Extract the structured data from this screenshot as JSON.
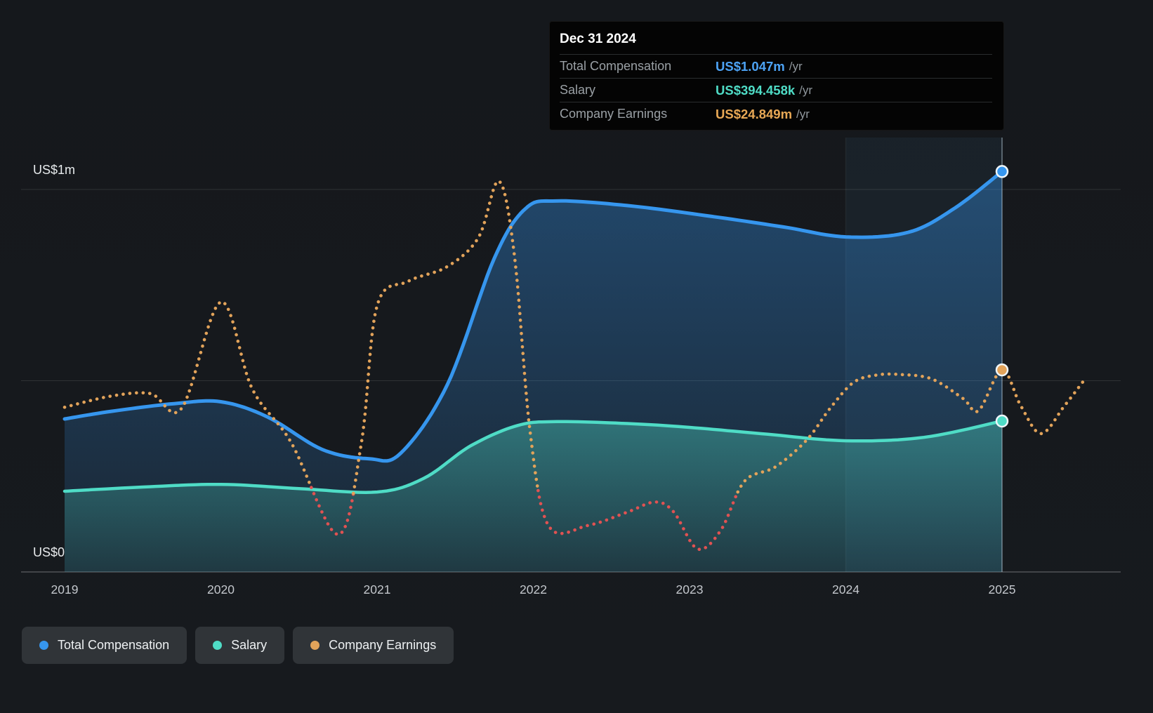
{
  "tooltip": {
    "date": "Dec 31 2024",
    "rows": [
      {
        "label": "Total Compensation",
        "value": "US$1.047m",
        "suffix": "/yr",
        "color": "#4da3f5"
      },
      {
        "label": "Salary",
        "value": "US$394.458k",
        "suffix": "/yr",
        "color": "#4fdcc6"
      },
      {
        "label": "Company Earnings",
        "value": "US$24.849m",
        "suffix": "/yr",
        "color": "#e8a855"
      }
    ]
  },
  "axes": {
    "y_labels": [
      {
        "text": "US$1m",
        "value_musd": 1
      },
      {
        "text": "US$0",
        "value_musd": 0
      }
    ],
    "x_ticks": [
      {
        "label": "2019",
        "year": 2019
      },
      {
        "label": "2020",
        "year": 2020
      },
      {
        "label": "2021",
        "year": 2021
      },
      {
        "label": "2022",
        "year": 2022
      },
      {
        "label": "2023",
        "year": 2023
      },
      {
        "label": "2024",
        "year": 2024
      },
      {
        "label": "2025",
        "year": 2025
      }
    ]
  },
  "legend": [
    {
      "label": "Total Compensation",
      "color": "#3696ee"
    },
    {
      "label": "Salary",
      "color": "#4fdcc6"
    },
    {
      "label": "Company Earnings",
      "color": "#e2a35a"
    }
  ],
  "chart_data": {
    "type": "line",
    "x_unit": "year",
    "highlight_year": 2025,
    "hover_date": "Dec 31 2024",
    "gridlines_usd_m": [
      1,
      0.5,
      0
    ],
    "y_axis": {
      "unit": "US$m",
      "min": 0,
      "max": 1.15,
      "labels": [
        "US$0",
        "US$1m"
      ]
    },
    "earnings_axis": {
      "unit": "US$m",
      "note": "separate scale, red when negative"
    },
    "series": [
      {
        "id": "total-compensation",
        "name": "Total Compensation",
        "axis": "compensation",
        "style": "solid",
        "fill": true,
        "color": "#3696ee",
        "width": 5,
        "points": [
          [
            2019.0,
            0.4
          ],
          [
            2019.3,
            0.42
          ],
          [
            2019.7,
            0.44
          ],
          [
            2020.0,
            0.445
          ],
          [
            2020.3,
            0.405
          ],
          [
            2020.65,
            0.32
          ],
          [
            2020.95,
            0.296
          ],
          [
            2021.15,
            0.31
          ],
          [
            2021.45,
            0.49
          ],
          [
            2021.75,
            0.82
          ],
          [
            2021.95,
            0.95
          ],
          [
            2022.15,
            0.97
          ],
          [
            2022.6,
            0.958
          ],
          [
            2023.1,
            0.932
          ],
          [
            2023.6,
            0.902
          ],
          [
            2024.0,
            0.876
          ],
          [
            2024.4,
            0.888
          ],
          [
            2024.7,
            0.952
          ],
          [
            2025.0,
            1.047
          ]
        ]
      },
      {
        "id": "salary",
        "name": "Salary",
        "axis": "compensation",
        "style": "solid",
        "fill": true,
        "color": "#4fdcc6",
        "width": 4.5,
        "points": [
          [
            2019.0,
            0.211
          ],
          [
            2019.5,
            0.222
          ],
          [
            2020.0,
            0.229
          ],
          [
            2020.5,
            0.218
          ],
          [
            2021.0,
            0.209
          ],
          [
            2021.3,
            0.245
          ],
          [
            2021.6,
            0.33
          ],
          [
            2021.9,
            0.383
          ],
          [
            2022.15,
            0.393
          ],
          [
            2022.6,
            0.388
          ],
          [
            2023.0,
            0.378
          ],
          [
            2023.5,
            0.36
          ],
          [
            2024.0,
            0.343
          ],
          [
            2024.5,
            0.352
          ],
          [
            2025.0,
            0.394458
          ]
        ]
      },
      {
        "id": "company-earnings",
        "name": "Company Earnings",
        "axis": "earnings",
        "style": "dotted",
        "fill": false,
        "color": "#e2a35a",
        "negative_color": "#e05252",
        "width": 4.6,
        "points": [
          [
            2019.0,
            17.2
          ],
          [
            2019.3,
            19.5
          ],
          [
            2019.55,
            20.0
          ],
          [
            2019.75,
            17.0
          ],
          [
            2020.0,
            38.8
          ],
          [
            2020.2,
            21.0
          ],
          [
            2020.45,
            10.0
          ],
          [
            2020.75,
            -8.9
          ],
          [
            2020.9,
            10.0
          ],
          [
            2021.0,
            38.0
          ],
          [
            2021.2,
            43.0
          ],
          [
            2021.45,
            46.0
          ],
          [
            2021.65,
            52.0
          ],
          [
            2021.78,
            63.5
          ],
          [
            2021.88,
            48.0
          ],
          [
            2021.98,
            12.0
          ],
          [
            2022.1,
            -7.2
          ],
          [
            2022.35,
            -7.0
          ],
          [
            2022.6,
            -4.3
          ],
          [
            2022.78,
            -2.2
          ],
          [
            2022.9,
            -4.3
          ],
          [
            2023.05,
            -11.8
          ],
          [
            2023.2,
            -8.0
          ],
          [
            2023.35,
            2.0
          ],
          [
            2023.55,
            5.0
          ],
          [
            2023.75,
            10.5
          ],
          [
            2023.9,
            17.0
          ],
          [
            2024.05,
            22.3
          ],
          [
            2024.2,
            23.8
          ],
          [
            2024.35,
            23.9
          ],
          [
            2024.55,
            23.0
          ],
          [
            2024.75,
            19.0
          ],
          [
            2024.85,
            16.5
          ],
          [
            2025.0,
            24.849
          ],
          [
            2025.12,
            17.5
          ],
          [
            2025.25,
            11.8
          ],
          [
            2025.4,
            17.5
          ],
          [
            2025.52,
            22.5
          ]
        ]
      }
    ]
  }
}
